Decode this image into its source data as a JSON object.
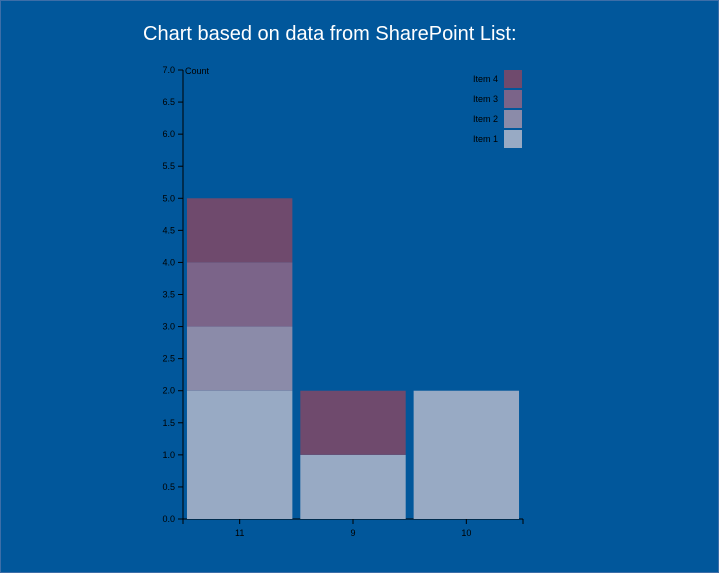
{
  "title": "Chart based on data from SharePoint List:",
  "colors": {
    "background": "#01579b",
    "Item 1": "#98aac4",
    "Item 2": "#8b8ba9",
    "Item 3": "#7b6489",
    "Item 4": "#6f4a6d"
  },
  "chart_data": {
    "type": "bar",
    "stacked": true,
    "title": "Chart based on data from SharePoint List:",
    "ylabel": "Count",
    "xlabel": "",
    "ylim": [
      0,
      7
    ],
    "yticks": [
      "0.0",
      "0.5",
      "1.0",
      "1.5",
      "2.0",
      "2.5",
      "3.0",
      "3.5",
      "4.0",
      "4.5",
      "5.0",
      "5.5",
      "6.0",
      "6.5",
      "7.0"
    ],
    "categories": [
      "11",
      "9",
      "10"
    ],
    "series": [
      {
        "name": "Item 1",
        "values": [
          2,
          1,
          2
        ]
      },
      {
        "name": "Item 2",
        "values": [
          1,
          0,
          0
        ]
      },
      {
        "name": "Item 3",
        "values": [
          1,
          0,
          0
        ]
      },
      {
        "name": "Item 4",
        "values": [
          1,
          1,
          0
        ]
      }
    ],
    "legend": {
      "position": "top-right",
      "order": [
        "Item 4",
        "Item 3",
        "Item 2",
        "Item 1"
      ]
    },
    "grid": false
  }
}
